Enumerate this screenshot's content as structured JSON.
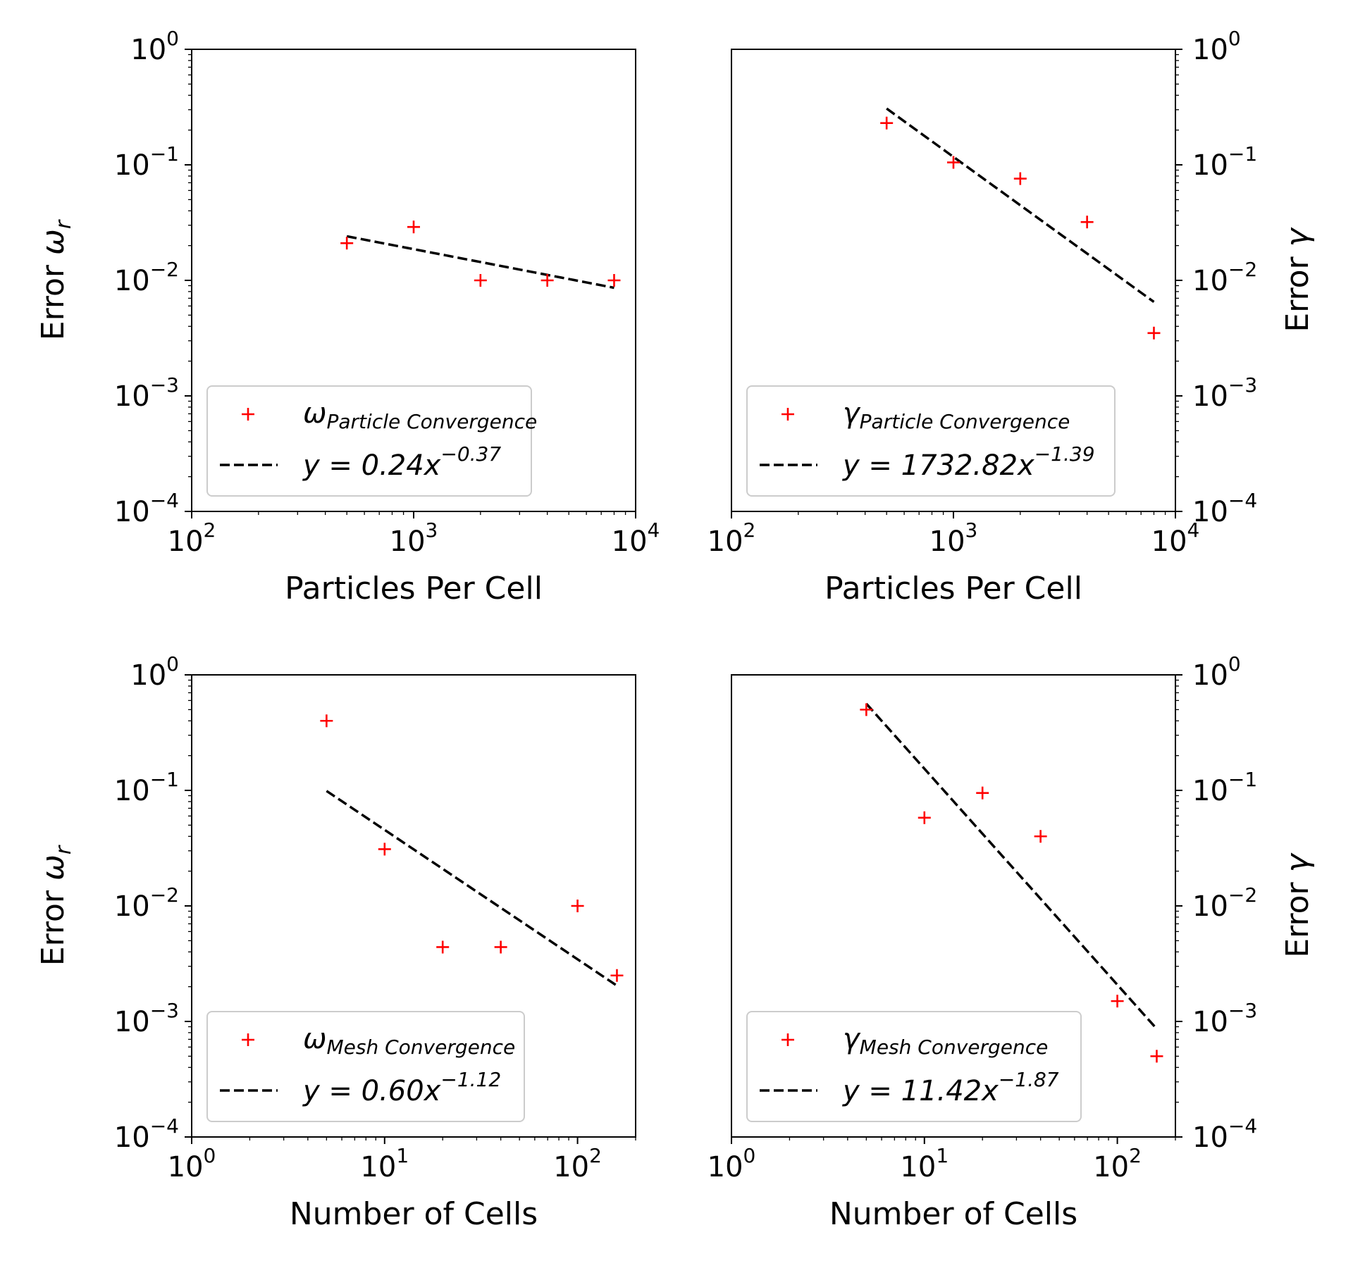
{
  "chart_data": [
    {
      "type": "scatter",
      "id": "tl",
      "title": "",
      "xlabel": "Particles Per Cell",
      "ylabel": "Error",
      "ylabel_symbol": "ω",
      "ylabel_sub": "r",
      "xscale": "log",
      "yscale": "log",
      "xlim": [
        100,
        10000
      ],
      "ylim": [
        0.0001,
        1
      ],
      "xtick_exponents": [
        "2",
        "3",
        "4"
      ],
      "ytick_exponents": [
        "0",
        "−1",
        "−2",
        "−3",
        "−4"
      ],
      "y_axis_side": "left",
      "series": [
        {
          "name": "ωParticle Convergence",
          "symbol": "ω",
          "subscript": "Particle Convergence",
          "marker": "+",
          "color": "#ff0000",
          "x": [
            500,
            1000,
            2000,
            4000,
            8000
          ],
          "y": [
            0.021,
            0.029,
            0.01,
            0.01,
            0.01
          ]
        },
        {
          "name": "y = 0.24x^−0.37",
          "style": "dashed",
          "color": "#000000",
          "fit": {
            "coef": 0.24,
            "exp": -0.37,
            "x_range": [
              500,
              8000
            ]
          },
          "label_prefix": "y = 0.24x",
          "label_exp": "−0.37"
        }
      ],
      "legend_position": "lower-left"
    },
    {
      "type": "scatter",
      "id": "tr",
      "title": "",
      "xlabel": "Particles Per Cell",
      "ylabel": "Error",
      "ylabel_symbol": "γ",
      "ylabel_sub": "",
      "xscale": "log",
      "yscale": "log",
      "xlim": [
        100,
        10000
      ],
      "ylim": [
        0.0001,
        1
      ],
      "xtick_exponents": [
        "2",
        "3",
        "4"
      ],
      "ytick_exponents": [
        "0",
        "−1",
        "−2",
        "−3",
        "−4"
      ],
      "y_axis_side": "right",
      "series": [
        {
          "name": "γParticle Convergence",
          "symbol": "γ",
          "subscript": "Particle Convergence",
          "marker": "+",
          "color": "#ff0000",
          "x": [
            500,
            1000,
            2000,
            4000,
            8000
          ],
          "y": [
            0.23,
            0.105,
            0.076,
            0.032,
            0.0035
          ]
        },
        {
          "name": "y = 1732.82x^−1.39",
          "style": "dashed",
          "color": "#000000",
          "fit": {
            "coef": 1732.82,
            "exp": -1.39,
            "x_range": [
              500,
              8000
            ]
          },
          "label_prefix": "y = 1732.82x",
          "label_exp": "−1.39"
        }
      ],
      "legend_position": "lower-left"
    },
    {
      "type": "scatter",
      "id": "bl",
      "title": "",
      "xlabel": "Number of Cells",
      "ylabel": "Error",
      "ylabel_symbol": "ω",
      "ylabel_sub": "r",
      "xscale": "log",
      "yscale": "log",
      "xlim": [
        1,
        200
      ],
      "ylim": [
        0.0001,
        1
      ],
      "xtick_exponents": [
        "0",
        "1",
        "2"
      ],
      "ytick_exponents": [
        "0",
        "−1",
        "−2",
        "−3",
        "−4"
      ],
      "y_axis_side": "left",
      "series": [
        {
          "name": "ωMesh Convergence",
          "symbol": "ω",
          "subscript": "Mesh Convergence",
          "marker": "+",
          "color": "#ff0000",
          "x": [
            5,
            10,
            20,
            40,
            100,
            160
          ],
          "y": [
            0.4,
            0.031,
            0.0044,
            0.0044,
            0.01,
            0.0025
          ]
        },
        {
          "name": "y = 0.60x^−1.12",
          "style": "dashed",
          "color": "#000000",
          "fit": {
            "coef": 0.6,
            "exp": -1.12,
            "x_range": [
              5,
              160
            ]
          },
          "label_prefix": "y = 0.60x",
          "label_exp": "−1.12"
        }
      ],
      "legend_position": "lower-left"
    },
    {
      "type": "scatter",
      "id": "br",
      "title": "",
      "xlabel": "Number of Cells",
      "ylabel": "Error",
      "ylabel_symbol": "γ",
      "ylabel_sub": "",
      "xscale": "log",
      "yscale": "log",
      "xlim": [
        1,
        200
      ],
      "ylim": [
        0.0001,
        1
      ],
      "xtick_exponents": [
        "0",
        "1",
        "2"
      ],
      "ytick_exponents": [
        "0",
        "−1",
        "−2",
        "−3",
        "−4"
      ],
      "y_axis_side": "right",
      "series": [
        {
          "name": "γMesh Convergence",
          "symbol": "γ",
          "subscript": "Mesh Convergence",
          "marker": "+",
          "color": "#ff0000",
          "x": [
            5,
            10,
            20,
            40,
            100,
            160
          ],
          "y": [
            0.5,
            0.058,
            0.095,
            0.04,
            0.0015,
            0.0005
          ]
        },
        {
          "name": "y = 11.42x^−1.87",
          "style": "dashed",
          "color": "#000000",
          "fit": {
            "coef": 11.42,
            "exp": -1.87,
            "x_range": [
              5,
              160
            ]
          },
          "label_prefix": "y = 11.42x",
          "label_exp": "−1.87"
        }
      ],
      "legend_position": "lower-left"
    }
  ]
}
